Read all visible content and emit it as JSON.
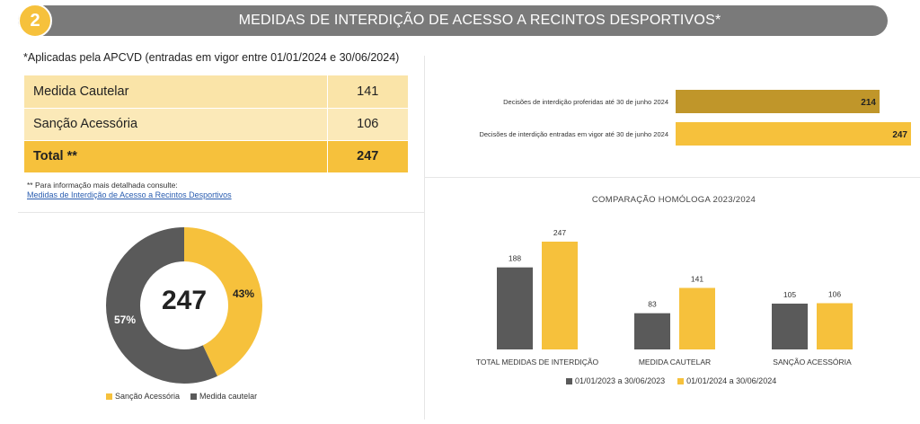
{
  "header": {
    "badge": "2",
    "title": "MEDIDAS DE INTERDIÇÃO DE ACESSO A RECINTOS DESPORTIVOS*"
  },
  "subtitle": "*Aplicadas pela APCVD (entradas em vigor entre 01/01/2024 e 30/06/2024)",
  "table": {
    "rows": [
      {
        "label": "Medida Cautelar",
        "value": "141"
      },
      {
        "label": "Sanção Acessória",
        "value": "106"
      },
      {
        "label": "Total **",
        "value": "247"
      }
    ]
  },
  "footnote": "** Para informação mais detalhada consulte:",
  "footnote_link": "Medidas de Interdição de Acesso a Recintos Desportivos",
  "colors": {
    "yellow": "#f6c13c",
    "gray": "#5a5a5a",
    "dark_yellow": "#c0962a",
    "header": "#7a7a7a"
  },
  "chart_data": [
    {
      "type": "pie",
      "center_label": "247",
      "slices": [
        {
          "name": "Sanção Acessória",
          "value": 43,
          "label": "43%"
        },
        {
          "name": "Medida cautelar",
          "value": 57,
          "label": "57%"
        }
      ],
      "legend_placement": "bottom"
    },
    {
      "type": "bar",
      "orientation": "horizontal",
      "categories": [
        "Decisões de interdição proferidas até 30 de junho 2024",
        "Decisões de interdição entradas em vigor até 30 de junho 2024"
      ],
      "values": [
        214,
        247
      ],
      "xlim": [
        0,
        247
      ]
    },
    {
      "type": "bar",
      "title": "COMPARAÇÃO HOMÓLOGA 2023/2024",
      "categories": [
        "TOTAL MEDIDAS DE INTERDIÇÃO",
        "MEDIDA CAUTELAR",
        "SANÇÃO ACESSÓRIA"
      ],
      "series": [
        {
          "name": "01/01/2023 a 30/06/2023",
          "values": [
            188,
            83,
            105
          ]
        },
        {
          "name": "01/01/2024 a 30/06/2024",
          "values": [
            247,
            141,
            106
          ]
        }
      ],
      "ylim": [
        0,
        247
      ],
      "legend_placement": "bottom"
    }
  ]
}
